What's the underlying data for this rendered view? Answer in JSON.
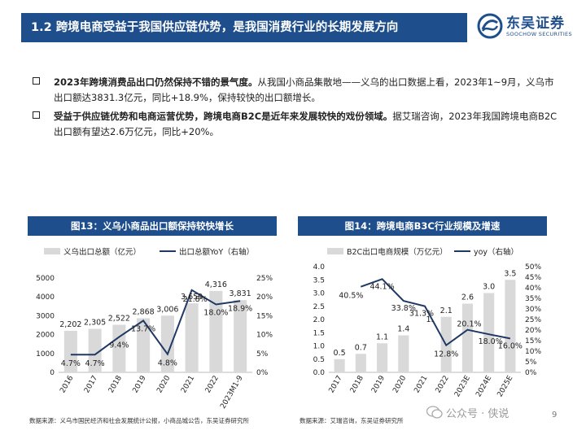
{
  "header": {
    "title": "1.2 跨境电商受益于我国供应链优势，是我国消费行业的长期发展方向",
    "logo_cn": "东吴证券",
    "logo_en": "SOOCHOW SECURITIES",
    "accent": "#1f4e8c"
  },
  "bullets": [
    {
      "bold": "2023年跨境消费品出口仍然保持不错的景气度。",
      "text": "从我国小商品集散地——义乌的出口数据上看，2023年1~9月，义乌市出口额达3831.3亿元，同比+18.9%，保持较快的出口额增长。"
    },
    {
      "bold": "受益于供应链优势和电商运营优势，跨境电商B2C是近年来发展较快的戏份领域。",
      "text": "据艾瑞咨询，2023年我国跨境电商B2C出口额有望达2.6万亿元，同比+20%。"
    }
  ],
  "chart_data": [
    {
      "type": "bar",
      "title": "图13：义乌小商品出口额保持较快增长",
      "categories": [
        "2016",
        "2017",
        "2018",
        "2019",
        "2020",
        "2021",
        "2022",
        "2023M1-9"
      ],
      "series": [
        {
          "name": "义乌出口总额（亿元）",
          "kind": "bar",
          "axis": "left",
          "values": [
            2202,
            2305,
            2522,
            2868,
            3006,
            3659,
            4316,
            3831
          ],
          "labels": [
            "2,202",
            "2,305",
            "2,522",
            "2,868",
            "3,006",
            "3,659",
            "4,316",
            "3,831"
          ]
        },
        {
          "name": "出口总额YoY（右轴）",
          "kind": "line",
          "axis": "right",
          "values": [
            4.7,
            4.7,
            9.4,
            13.7,
            4.8,
            21.8,
            18.0,
            18.9
          ],
          "labels": [
            "4.7%",
            "4.7%",
            "9.4%",
            "13.7%",
            "4.8%",
            "21.8%",
            "18.0%",
            "18.9%"
          ]
        }
      ],
      "y_left": {
        "range": [
          0,
          5000
        ],
        "ticks": [
          "0",
          "1000",
          "2000",
          "3000",
          "4000",
          "5000"
        ]
      },
      "y_right": {
        "range": [
          0,
          25
        ],
        "ticks": [
          "0%",
          "5%",
          "10%",
          "15%",
          "20%",
          "25%"
        ]
      },
      "source": "数据来源：义乌市国民经济和社会发展统计公报，小商品城公告，东吴证券研究所",
      "bar_color": "#d9d9d9",
      "line_color": "#1f3864"
    },
    {
      "type": "bar",
      "title": "图14：跨境电商B3C行业规模及增速",
      "categories": [
        "2017",
        "2018",
        "2019",
        "2020",
        "2021",
        "2022",
        "2023E",
        "2024E",
        "2025E"
      ],
      "series": [
        {
          "name": "B2C出口电商规模（万亿元）",
          "kind": "bar",
          "axis": "left",
          "values": [
            0.5,
            0.7,
            1.1,
            1.4,
            null,
            2.1,
            2.6,
            3.0,
            3.5
          ],
          "labels": [
            "0.5",
            "0.7",
            "1.1",
            "1.4",
            "1.",
            "2.1",
            "2.6",
            "3.0",
            "3.5"
          ]
        },
        {
          "name": "yoy（右轴）",
          "kind": "line",
          "axis": "right",
          "values": [
            null,
            40.5,
            44.1,
            33.8,
            31.3,
            12.8,
            20.1,
            18.0,
            16.0
          ],
          "labels": [
            "",
            "40.5%",
            "44.1%",
            "33.8%",
            "31.3%",
            "12.8%",
            "20.1%",
            "18.0%",
            "16.0%"
          ]
        }
      ],
      "y_left": {
        "range": [
          0,
          4
        ],
        "ticks": [
          "0.0",
          "0.5",
          "1.0",
          "1.5",
          "2.0",
          "2.5",
          "3.0",
          "3.5",
          "4.0"
        ]
      },
      "y_right": {
        "range": [
          0,
          50
        ],
        "ticks": [
          "0%",
          "5%",
          "10%",
          "15%",
          "20%",
          "25%",
          "30%",
          "35%",
          "40%",
          "45%",
          "50%"
        ]
      },
      "source": "数据来源：艾瑞咨询，东吴证券研究所",
      "bar_color": "#d9d9d9",
      "line_color": "#1f3864"
    }
  ],
  "watermark": "公众号 · 侠说",
  "page_number": "9"
}
